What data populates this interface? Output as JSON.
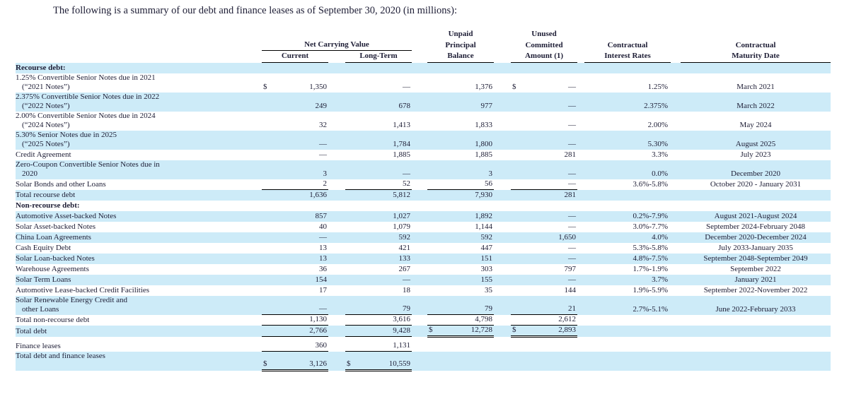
{
  "title": "The following is a summary of our debt and finance leases as of September 30, 2020 (in millions):",
  "colors": {
    "stripe": "#cdebf8",
    "text": "#1d1d35",
    "rule": "#000000"
  },
  "header": {
    "unpaid": "Unpaid",
    "unused": "Unused",
    "net_carrying_value": "Net Carrying Value",
    "principal": "Principal",
    "committed": "Committed",
    "contractual_rates_1": "Contractual",
    "contractual_maturity_1": "Contractual",
    "current": "Current",
    "long_term": "Long-Term",
    "balance": "Balance",
    "amount": "Amount (1)",
    "interest_rates": "Interest Rates",
    "maturity_date": "Maturity Date"
  },
  "rows": [
    {
      "kind": "section",
      "label": "Recourse debt:"
    },
    {
      "kind": "data",
      "label": [
        "1.25% Convertible Senior Notes due in 2021",
        "(“2021 Notes”)"
      ],
      "syms": [
        "$",
        "",
        "",
        "$"
      ],
      "vals": [
        "1,350",
        "—",
        "1,376",
        "—"
      ],
      "rate": "1.25%",
      "maturity": "March 2021"
    },
    {
      "kind": "data",
      "label": [
        "2.375% Convertible Senior Notes due in 2022",
        "(“2022 Notes”)"
      ],
      "syms": [
        "",
        "",
        "",
        ""
      ],
      "vals": [
        "249",
        "678",
        "977",
        "—"
      ],
      "rate": "2.375%",
      "maturity": "March 2022"
    },
    {
      "kind": "data",
      "label": [
        "2.00% Convertible Senior Notes due in 2024",
        "(“2024 Notes”)"
      ],
      "syms": [
        "",
        "",
        "",
        ""
      ],
      "vals": [
        "32",
        "1,413",
        "1,833",
        "—"
      ],
      "rate": "2.00%",
      "maturity": "May 2024"
    },
    {
      "kind": "data",
      "label": [
        "5.30% Senior Notes due in 2025",
        "(“2025 Notes”)"
      ],
      "syms": [
        "",
        "",
        "",
        ""
      ],
      "vals": [
        "—",
        "1,784",
        "1,800",
        "—"
      ],
      "rate": "5.30%",
      "maturity": "August 2025"
    },
    {
      "kind": "data",
      "label": [
        "Credit Agreement"
      ],
      "syms": [
        "",
        "",
        "",
        ""
      ],
      "vals": [
        "—",
        "1,885",
        "1,885",
        "281"
      ],
      "rate": "3.3%",
      "maturity": "July 2023"
    },
    {
      "kind": "data",
      "label": [
        "Zero-Coupon Convertible Senior Notes due in",
        "2020"
      ],
      "syms": [
        "",
        "",
        "",
        ""
      ],
      "vals": [
        "3",
        "—",
        "3",
        "—"
      ],
      "rate": "0.0%",
      "maturity": "December 2020"
    },
    {
      "kind": "data",
      "label": [
        "Solar Bonds and other Loans"
      ],
      "syms": [
        "",
        "",
        "",
        ""
      ],
      "vals": [
        "2",
        "52",
        "56",
        "—"
      ],
      "rate": "3.6%-5.8%",
      "maturity": "October 2020 - January 2031",
      "rules": [
        "s",
        "s",
        "s",
        "s"
      ]
    },
    {
      "kind": "data",
      "label": [
        "Total recourse debt"
      ],
      "syms": [
        "",
        "",
        "",
        ""
      ],
      "vals": [
        "1,636",
        "5,812",
        "7,930",
        "281"
      ],
      "rate": "",
      "maturity": ""
    },
    {
      "kind": "section",
      "label": "Non-recourse debt:"
    },
    {
      "kind": "data",
      "label": [
        "Automotive Asset-backed Notes"
      ],
      "syms": [
        "",
        "",
        "",
        ""
      ],
      "vals": [
        "857",
        "1,027",
        "1,892",
        "—"
      ],
      "rate": "0.2%-7.9%",
      "maturity": "August 2021-August 2024"
    },
    {
      "kind": "data",
      "label": [
        "Solar Asset-backed Notes"
      ],
      "syms": [
        "",
        "",
        "",
        ""
      ],
      "vals": [
        "40",
        "1,079",
        "1,144",
        "—"
      ],
      "rate": "3.0%-7.7%",
      "maturity": "September 2024-February 2048"
    },
    {
      "kind": "data",
      "label": [
        "China Loan Agreements"
      ],
      "syms": [
        "",
        "",
        "",
        ""
      ],
      "vals": [
        "—",
        "592",
        "592",
        "1,650"
      ],
      "rate": "4.0%",
      "maturity": "December 2020-December 2024"
    },
    {
      "kind": "data",
      "label": [
        "Cash Equity Debt"
      ],
      "syms": [
        "",
        "",
        "",
        ""
      ],
      "vals": [
        "13",
        "421",
        "447",
        "—"
      ],
      "rate": "5.3%-5.8%",
      "maturity": "July 2033-January 2035"
    },
    {
      "kind": "data",
      "label": [
        "Solar Loan-backed Notes"
      ],
      "syms": [
        "",
        "",
        "",
        ""
      ],
      "vals": [
        "13",
        "133",
        "151",
        "—"
      ],
      "rate": "4.8%-7.5%",
      "maturity": "September 2048-September 2049"
    },
    {
      "kind": "data",
      "label": [
        "Warehouse Agreements"
      ],
      "syms": [
        "",
        "",
        "",
        ""
      ],
      "vals": [
        "36",
        "267",
        "303",
        "797"
      ],
      "rate": "1.7%-1.9%",
      "maturity": "September 2022"
    },
    {
      "kind": "data",
      "label": [
        "Solar Term Loans"
      ],
      "syms": [
        "",
        "",
        "",
        ""
      ],
      "vals": [
        "154",
        "—",
        "155",
        "—"
      ],
      "rate": "3.7%",
      "maturity": "January 2021"
    },
    {
      "kind": "data",
      "label": [
        "Automotive Lease-backed Credit Facilities"
      ],
      "syms": [
        "",
        "",
        "",
        ""
      ],
      "vals": [
        "17",
        "18",
        "35",
        "144"
      ],
      "rate": "1.9%-5.9%",
      "maturity": "September 2022-November 2022"
    },
    {
      "kind": "data",
      "label": [
        "Solar Renewable Energy Credit and",
        "other Loans"
      ],
      "syms": [
        "",
        "",
        "",
        ""
      ],
      "vals": [
        "—",
        "79",
        "79",
        "21"
      ],
      "rate": "2.7%-5.1%",
      "maturity": "June 2022-February 2033",
      "rules": [
        "s",
        "s",
        "s",
        "s"
      ]
    },
    {
      "kind": "data",
      "label": [
        "Total non-recourse debt"
      ],
      "syms": [
        "",
        "",
        "",
        ""
      ],
      "vals": [
        "1,130",
        "3,616",
        "4,798",
        "2,612"
      ],
      "rate": "",
      "maturity": "",
      "rules": [
        "s",
        "s",
        "s",
        "s"
      ]
    },
    {
      "kind": "data",
      "label": [
        "Total debt"
      ],
      "syms": [
        "",
        "",
        "$",
        "$"
      ],
      "vals": [
        "2,766",
        "9,428",
        "12,728",
        "2,893"
      ],
      "rate": "",
      "maturity": "",
      "rules": [
        "s",
        "s",
        "d",
        "d"
      ]
    },
    {
      "kind": "data",
      "label": [
        "Finance leases"
      ],
      "syms": [
        "",
        "",
        "",
        ""
      ],
      "vals": [
        "360",
        "1,131",
        "",
        ""
      ],
      "rate": "",
      "maturity": "",
      "rules": [
        "s",
        "s",
        "",
        ""
      ],
      "tall": true
    },
    {
      "kind": "data",
      "label": [
        "Total debt and finance leases",
        ""
      ],
      "syms": [
        "$",
        "$",
        "",
        ""
      ],
      "vals": [
        "3,126",
        "10,559",
        "",
        ""
      ],
      "rate": "",
      "maturity": "",
      "rules": [
        "d",
        "d",
        "",
        ""
      ]
    }
  ]
}
